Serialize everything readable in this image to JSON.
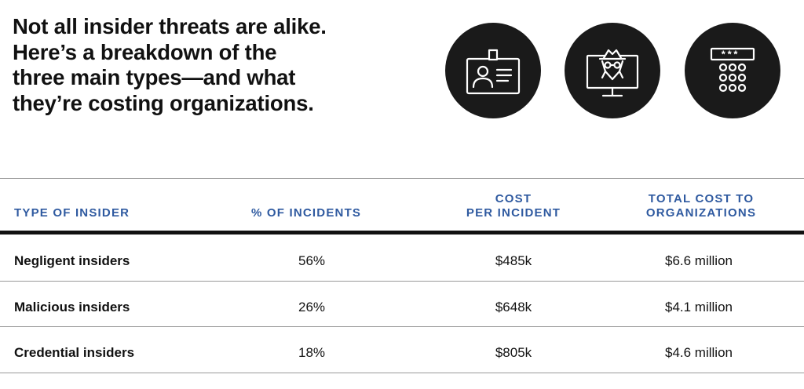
{
  "headline": {
    "lines": [
      "Not all insider threats are alike.",
      "Here’s a breakdown of the",
      "three main types—and what",
      "they’re costing organizations."
    ]
  },
  "icons": [
    {
      "name": "id-badge-icon"
    },
    {
      "name": "hacker-monitor-icon"
    },
    {
      "name": "password-keypad-icon",
      "text": "***_"
    }
  ],
  "table": {
    "headers": {
      "type": [
        "TYPE OF INSIDER"
      ],
      "pct": [
        "% OF INCIDENTS"
      ],
      "cost": [
        "COST",
        "PER INCIDENT"
      ],
      "total": [
        "TOTAL COST TO",
        "ORGANIZATIONS"
      ]
    },
    "rows": [
      {
        "type": "Negligent insiders",
        "pct": "56%",
        "cost": "$485k",
        "total": "$6.6 million"
      },
      {
        "type": "Malicious insiders",
        "pct": "26%",
        "cost": "$648k",
        "total": "$4.1 million"
      },
      {
        "type": "Credential insiders",
        "pct": "18%",
        "cost": "$805k",
        "total": "$4.6 million"
      }
    ]
  },
  "colors": {
    "header_text": "#2f5aa0",
    "icon_background": "#1a1a1a",
    "icon_stroke": "#ffffff"
  }
}
